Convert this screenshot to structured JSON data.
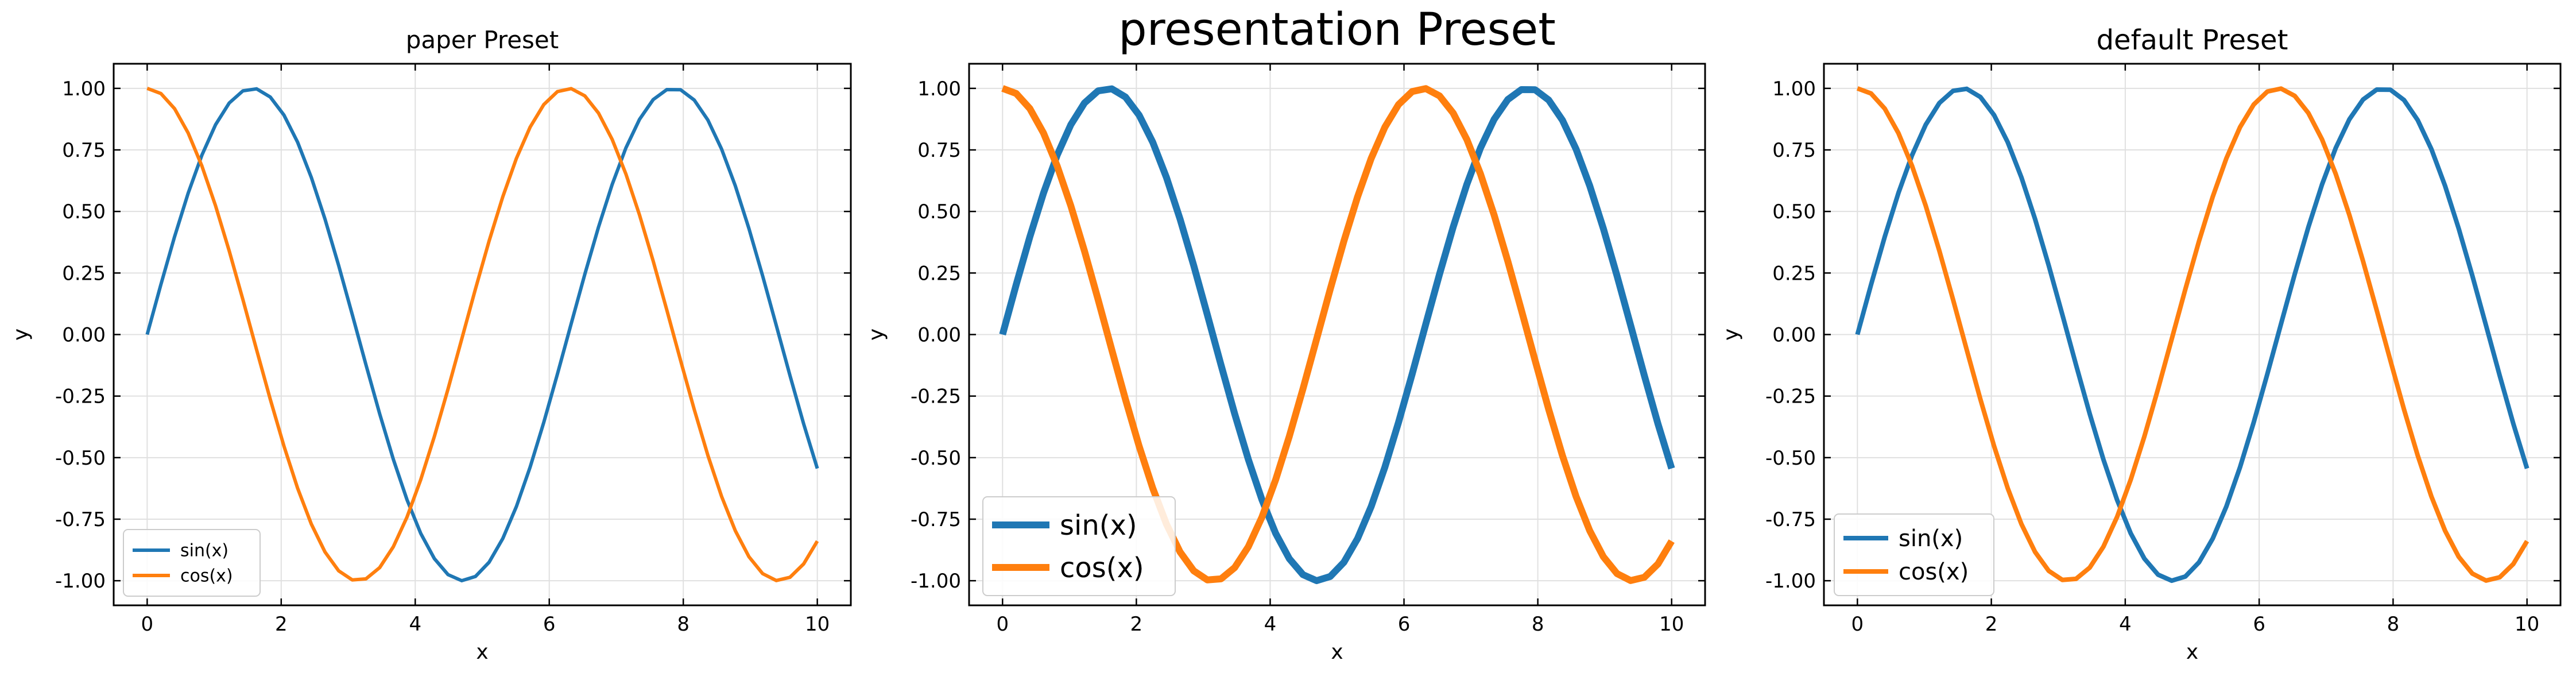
{
  "colors": {
    "sin": "#1f77b4",
    "cos": "#ff7f0e",
    "grid": "#e0e0e0",
    "axis": "#000000"
  },
  "chart_data": [
    {
      "type": "line",
      "title": "paper Preset",
      "xlabel": "x",
      "ylabel": "y",
      "xlim": [
        -0.5,
        10.5
      ],
      "ylim": [
        -1.1,
        1.1
      ],
      "xticks": [
        "0",
        "2",
        "4",
        "6",
        "8",
        "10"
      ],
      "yticks": [
        "-1.00",
        "-0.75",
        "-0.50",
        "-0.25",
        "0.00",
        "0.25",
        "0.50",
        "0.75",
        "1.00"
      ],
      "grid": true,
      "legend": "lower-left",
      "series": [
        {
          "name": "sin(x)",
          "function": "sin",
          "x_range": [
            0,
            10
          ],
          "points": 50
        },
        {
          "name": "cos(x)",
          "function": "cos",
          "x_range": [
            0,
            10
          ],
          "points": 50
        }
      ]
    },
    {
      "type": "line",
      "title": "presentation Preset",
      "xlabel": "x",
      "ylabel": "y",
      "xlim": [
        -0.5,
        10.5
      ],
      "ylim": [
        -1.1,
        1.1
      ],
      "xticks": [
        "0",
        "2",
        "4",
        "6",
        "8",
        "10"
      ],
      "yticks": [
        "-1.00",
        "-0.75",
        "-0.50",
        "-0.25",
        "0.00",
        "0.25",
        "0.50",
        "0.75",
        "1.00"
      ],
      "grid": true,
      "legend": "lower-left",
      "series": [
        {
          "name": "sin(x)",
          "function": "sin",
          "x_range": [
            0,
            10
          ],
          "points": 50
        },
        {
          "name": "cos(x)",
          "function": "cos",
          "x_range": [
            0,
            10
          ],
          "points": 50
        }
      ]
    },
    {
      "type": "line",
      "title": "default Preset",
      "xlabel": "x",
      "ylabel": "y",
      "xlim": [
        -0.5,
        10.5
      ],
      "ylim": [
        -1.1,
        1.1
      ],
      "xticks": [
        "0",
        "2",
        "4",
        "6",
        "8",
        "10"
      ],
      "yticks": [
        "-1.00",
        "-0.75",
        "-0.50",
        "-0.25",
        "0.00",
        "0.25",
        "0.50",
        "0.75",
        "1.00"
      ],
      "grid": true,
      "legend": "lower-left",
      "series": [
        {
          "name": "sin(x)",
          "function": "sin",
          "x_range": [
            0,
            10
          ],
          "points": 50
        },
        {
          "name": "cos(x)",
          "function": "cos",
          "x_range": [
            0,
            10
          ],
          "points": 50
        }
      ]
    }
  ]
}
